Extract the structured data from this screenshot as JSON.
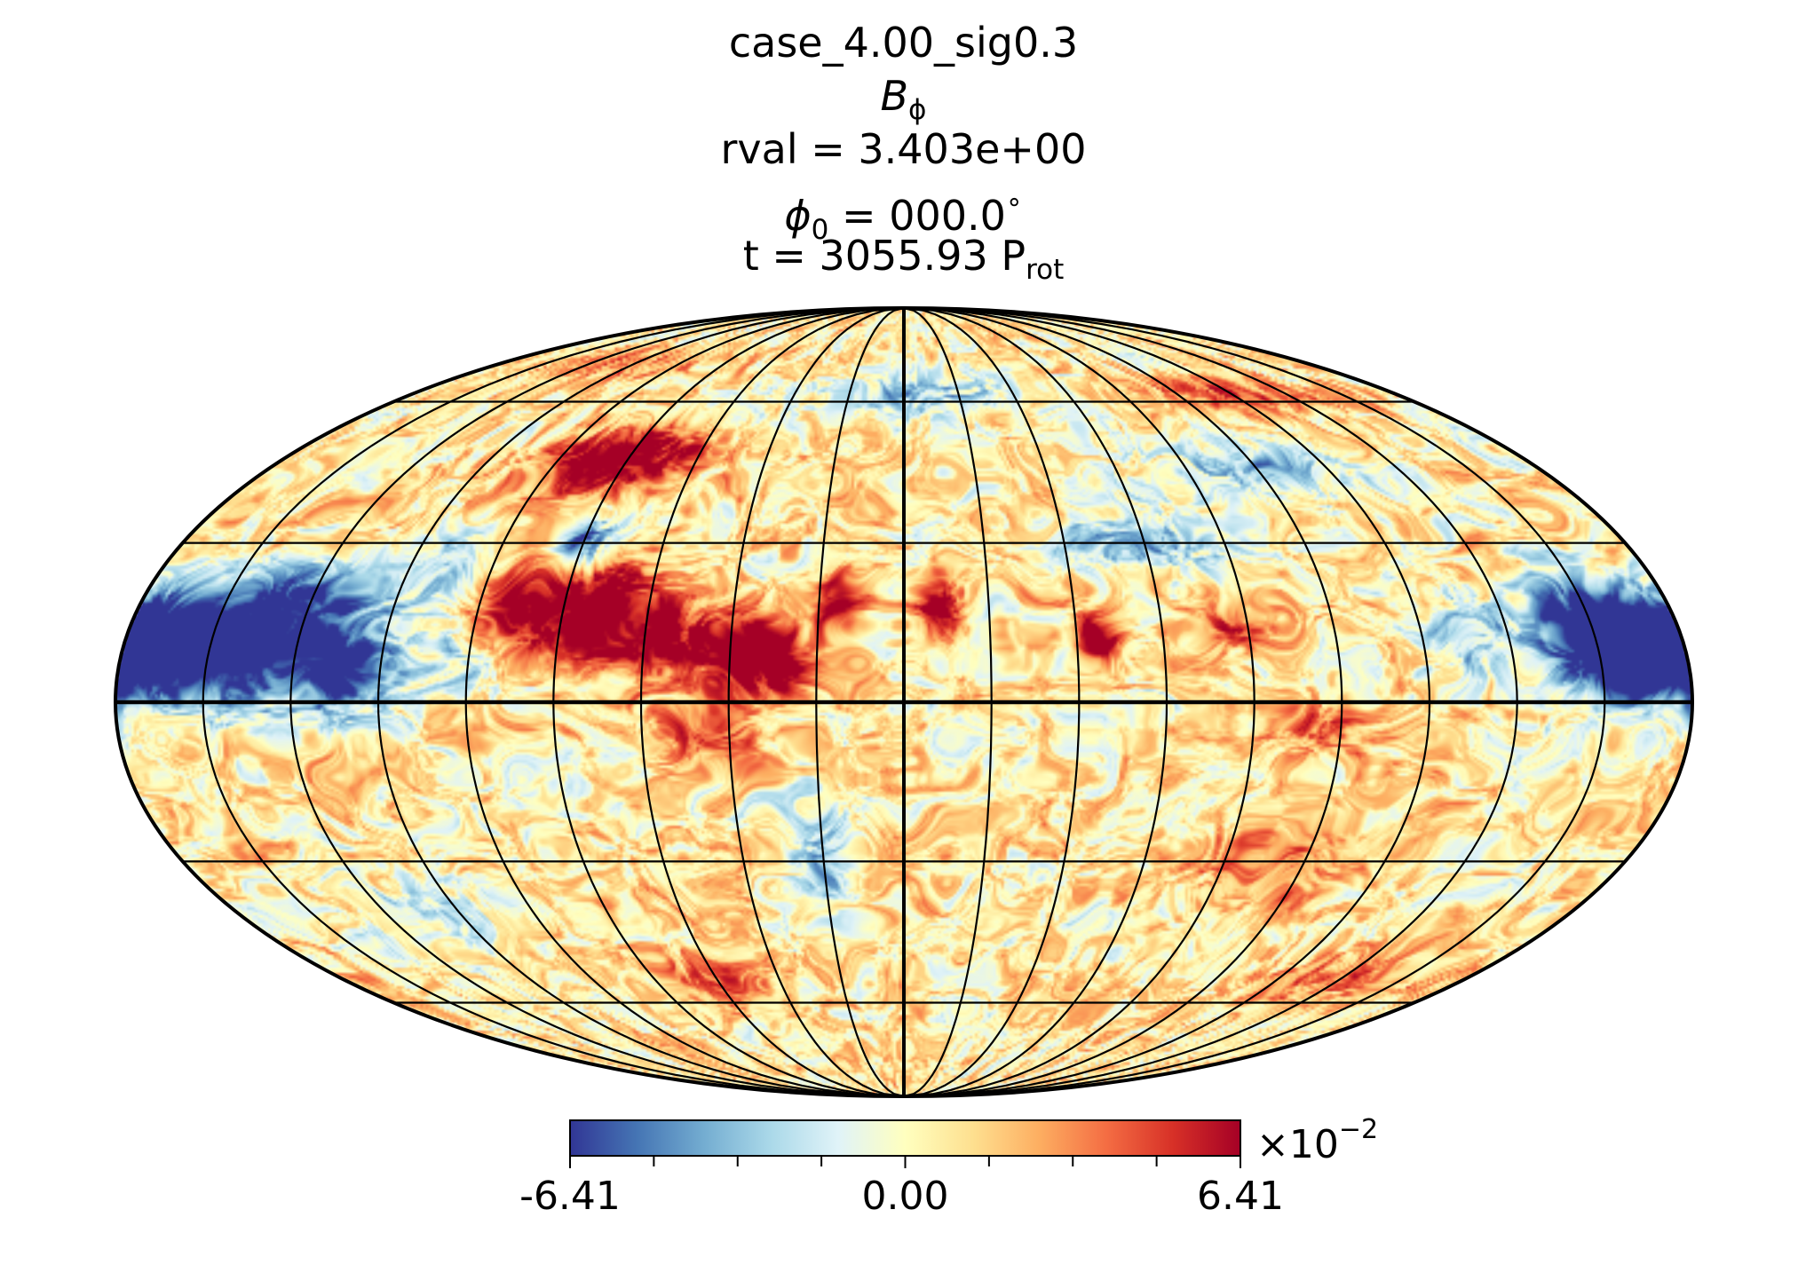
{
  "title": {
    "case": "case_4.00_sig0.3",
    "variable_base": "B",
    "variable_sub": "ϕ",
    "rval": "rval = 3.403e+00",
    "phi_base": "ϕ",
    "phi_sub": "0",
    "phi_rest": " = 000.0",
    "phi_degree": "∘",
    "time_main": "t = 3055.93 P",
    "time_sub": "rot"
  },
  "chart_data": {
    "type": "heatmap",
    "projection": "mollweide",
    "field": "B_phi",
    "grid": true,
    "meridian_spacing_deg": 20,
    "parallel_latitudes_deg": [
      -60,
      -30,
      0,
      30,
      60
    ],
    "colormap": [
      "#313695",
      "#4575b4",
      "#74add1",
      "#abd9e9",
      "#e0f3f8",
      "#ffffbf",
      "#fee090",
      "#fdae61",
      "#f46d43",
      "#d73027",
      "#a50026"
    ],
    "colorbar": {
      "min": -6.41,
      "max": 6.41,
      "tick_labels": [
        "-6.41",
        "0.00",
        "6.41"
      ],
      "minor_ticks": 9,
      "scale_label": "×10",
      "scale_exponent": "−2",
      "placement": "bottom"
    },
    "features": [
      {
        "lon": -175,
        "lat": 10,
        "amp": -1.0,
        "sx": 18,
        "sy": 7
      },
      {
        "lon": -150,
        "lat": 11,
        "amp": -0.9,
        "sx": 14,
        "sy": 8
      },
      {
        "lon": -128,
        "lat": 6,
        "amp": -0.85,
        "sx": 9,
        "sy": 6
      },
      {
        "lon": -140,
        "lat": 20,
        "amp": -0.4,
        "sx": 12,
        "sy": 5
      },
      {
        "lon": 172,
        "lat": 10,
        "amp": -1.0,
        "sx": 12,
        "sy": 6
      },
      {
        "lon": 158,
        "lat": 14,
        "amp": -0.75,
        "sx": 9,
        "sy": 7
      },
      {
        "lon": 130,
        "lat": 12,
        "amp": -0.45,
        "sx": 8,
        "sy": 5
      },
      {
        "lon": -90,
        "lat": 18,
        "amp": 0.95,
        "sx": 8,
        "sy": 6
      },
      {
        "lon": -70,
        "lat": 17,
        "amp": 0.9,
        "sx": 8,
        "sy": 7
      },
      {
        "lon": -55,
        "lat": 12,
        "amp": 0.8,
        "sx": 6,
        "sy": 5
      },
      {
        "lon": -38,
        "lat": 10,
        "amp": 1.0,
        "sx": 6,
        "sy": 5
      },
      {
        "lon": -28,
        "lat": 7,
        "amp": 0.8,
        "sx": 5,
        "sy": 4
      },
      {
        "lon": -15,
        "lat": 18,
        "amp": 0.85,
        "sx": 4,
        "sy": 4
      },
      {
        "lon": 8,
        "lat": 17,
        "amp": 0.8,
        "sx": 4,
        "sy": 4
      },
      {
        "lon": 45,
        "lat": 12,
        "amp": 0.85,
        "sx": 4,
        "sy": 3
      },
      {
        "lon": -45,
        "lat": -5,
        "amp": 0.55,
        "sx": 8,
        "sy": 5
      },
      {
        "lon": -75,
        "lat": 48,
        "amp": 0.75,
        "sx": 12,
        "sy": 5
      },
      {
        "lon": -95,
        "lat": 45,
        "amp": 0.55,
        "sx": 10,
        "sy": 5
      },
      {
        "lon": -80,
        "lat": 30,
        "amp": -0.8,
        "sx": 5,
        "sy": 4
      },
      {
        "lon": -110,
        "lat": 25,
        "amp": -0.45,
        "sx": 8,
        "sy": 6
      },
      {
        "lon": -100,
        "lat": 8,
        "amp": -0.35,
        "sx": 7,
        "sy": 5
      },
      {
        "lon": 60,
        "lat": 30,
        "amp": -0.45,
        "sx": 18,
        "sy": 4
      },
      {
        "lon": 100,
        "lat": 45,
        "amp": -0.5,
        "sx": 22,
        "sy": 4
      },
      {
        "lon": 5,
        "lat": 62,
        "amp": -0.45,
        "sx": 30,
        "sy": 4
      },
      {
        "lon": 120,
        "lat": 62,
        "amp": 0.4,
        "sx": 25,
        "sy": 3
      },
      {
        "lon": -120,
        "lat": 70,
        "amp": 0.35,
        "sx": 25,
        "sy": 3
      },
      {
        "lon": 75,
        "lat": 14,
        "amp": 0.45,
        "sx": 6,
        "sy": 4
      },
      {
        "lon": 95,
        "lat": -5,
        "amp": 0.4,
        "sx": 8,
        "sy": 4
      },
      {
        "lon": -20,
        "lat": -30,
        "amp": -0.45,
        "sx": 5,
        "sy": 10
      },
      {
        "lon": 95,
        "lat": -30,
        "amp": 0.35,
        "sx": 14,
        "sy": 6
      },
      {
        "lon": -130,
        "lat": -40,
        "amp": -0.3,
        "sx": 14,
        "sy": 6
      },
      {
        "lon": 140,
        "lat": -55,
        "amp": 0.35,
        "sx": 18,
        "sy": 5
      },
      {
        "lon": -60,
        "lat": -55,
        "amp": 0.35,
        "sx": 14,
        "sy": 5
      }
    ]
  }
}
